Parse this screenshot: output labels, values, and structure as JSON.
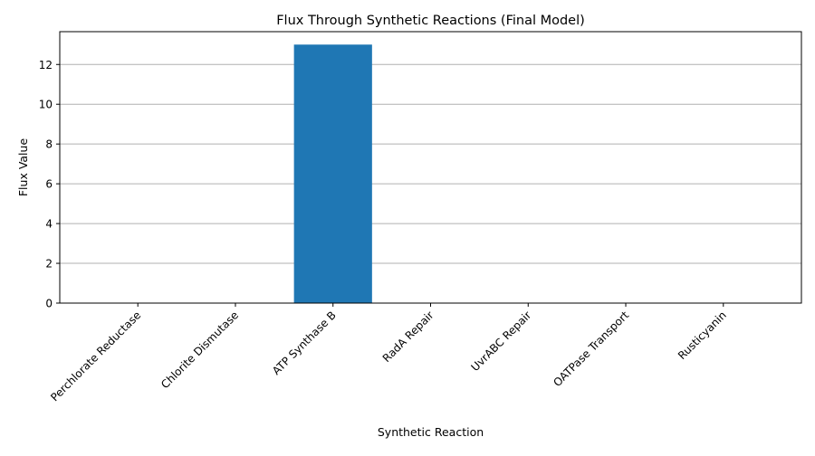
{
  "chart_data": {
    "type": "bar",
    "title": "Flux Through Synthetic Reactions (Final Model)",
    "xlabel": "Synthetic Reaction",
    "ylabel": "Flux Value",
    "categories": [
      "Perchlorate Reductase",
      "Chlorite Dismutase",
      "ATP Synthase B",
      "RadA Repair",
      "UvrABC Repair",
      "OATPase Transport",
      "Rusticyanin"
    ],
    "values": [
      0,
      0,
      13,
      0,
      0,
      0,
      0
    ],
    "ylim": [
      0,
      13.65
    ],
    "yticks": [
      0,
      2,
      4,
      6,
      8,
      10,
      12
    ],
    "grid": "y",
    "bar_color": "#1f77b4",
    "grid_color": "#b0b0b0"
  }
}
